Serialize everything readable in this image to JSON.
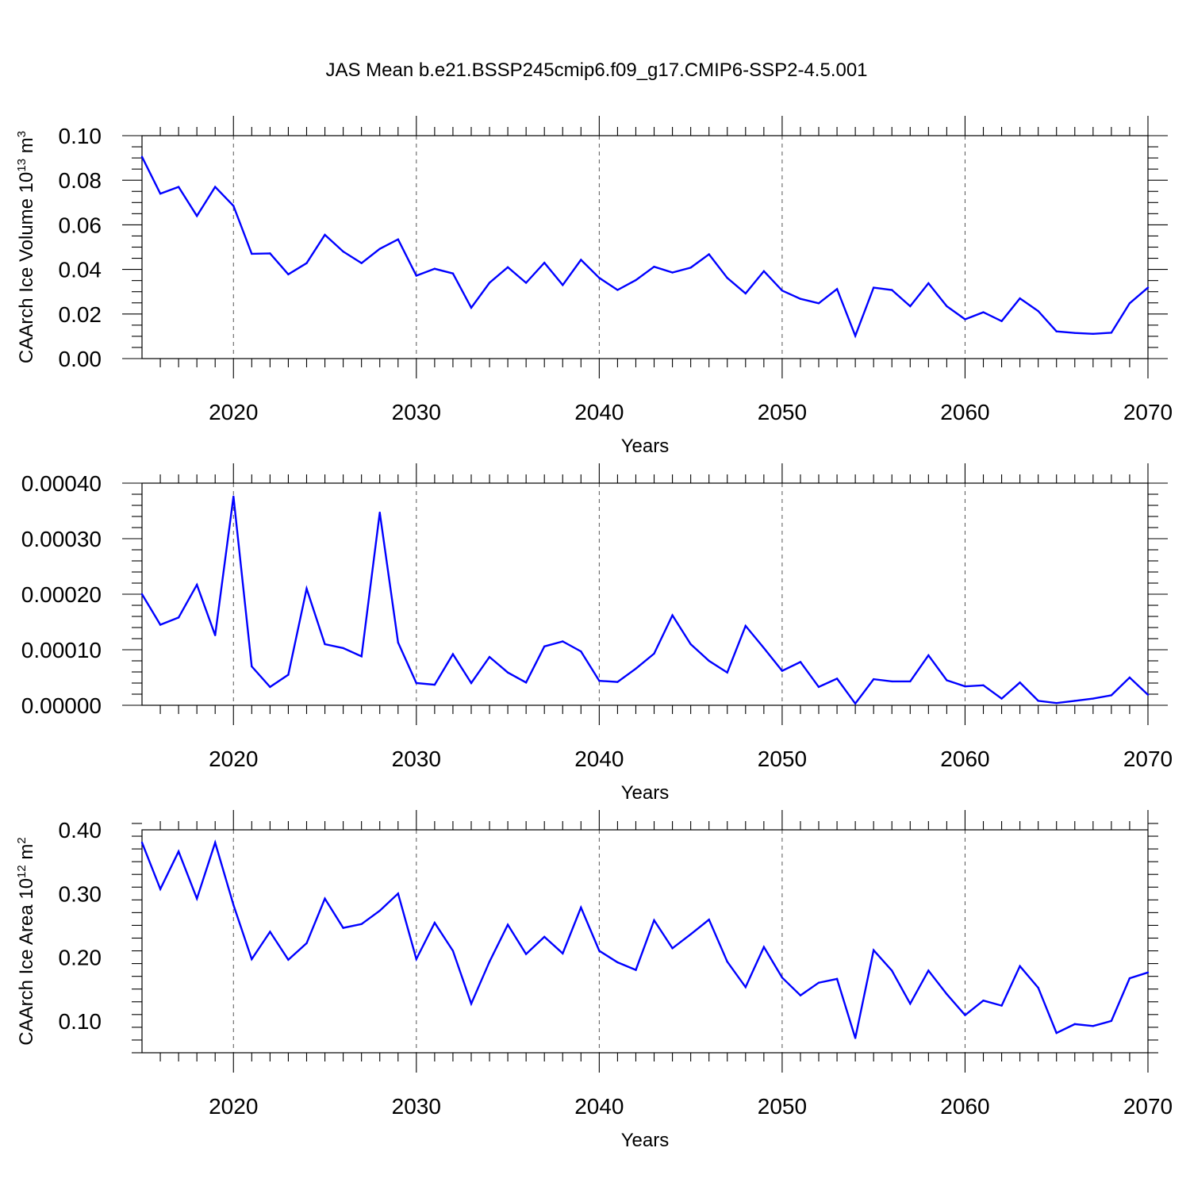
{
  "title": "JAS Mean b.e21.BSSP245cmip6.f09_g17.CMIP6-SSP2-4.5.001",
  "line_color": "#0000ff",
  "chart_data": [
    {
      "type": "line",
      "xlabel": "Years",
      "ylabel": "CAArch Ice Volume 10",
      "ylabel_sup": "13",
      "ylabel_unit": " m",
      "ylabel_unit_sup": "3",
      "xlim": [
        2015,
        2070
      ],
      "ylim": [
        0.0,
        0.1
      ],
      "xticks": [
        2020,
        2030,
        2040,
        2050,
        2060,
        2070
      ],
      "xtick_labels": [
        "2020",
        "2030",
        "2040",
        "2050",
        "2060",
        "2070"
      ],
      "yticks": [
        0.0,
        0.02,
        0.04,
        0.06,
        0.08,
        0.1
      ],
      "ytick_labels": [
        "0.00",
        "0.02",
        "0.04",
        "0.06",
        "0.08",
        "0.10"
      ],
      "y_minor_step": 0.005,
      "grid": "vertical dashed at major x ticks",
      "x": [
        2015,
        2016,
        2017,
        2018,
        2019,
        2020,
        2021,
        2022,
        2023,
        2024,
        2025,
        2026,
        2027,
        2028,
        2029,
        2030,
        2031,
        2032,
        2033,
        2034,
        2035,
        2036,
        2037,
        2038,
        2039,
        2040,
        2041,
        2042,
        2043,
        2044,
        2045,
        2046,
        2047,
        2048,
        2049,
        2050,
        2051,
        2052,
        2053,
        2054,
        2055,
        2056,
        2057,
        2058,
        2059,
        2060,
        2061,
        2062,
        2063,
        2064,
        2065,
        2066,
        2067,
        2068,
        2069,
        2070
      ],
      "values": [
        0.0905,
        0.074,
        0.077,
        0.064,
        0.077,
        0.0685,
        0.047,
        0.0472,
        0.0378,
        0.0428,
        0.0555,
        0.048,
        0.0428,
        0.0492,
        0.0535,
        0.0372,
        0.0403,
        0.0382,
        0.0228,
        0.034,
        0.041,
        0.034,
        0.043,
        0.033,
        0.0443,
        0.0362,
        0.0308,
        0.0352,
        0.0412,
        0.0386,
        0.0408,
        0.0468,
        0.0362,
        0.0292,
        0.0392,
        0.0305,
        0.0268,
        0.0248,
        0.0312,
        0.0102,
        0.0318,
        0.0308,
        0.0235,
        0.0338,
        0.0235,
        0.0176,
        0.0208,
        0.0168,
        0.027,
        0.0213,
        0.0122,
        0.0115,
        0.0111,
        0.0116,
        0.0248,
        0.0318
      ]
    },
    {
      "type": "line",
      "xlabel": "Years",
      "ylabel": "",
      "xlim": [
        2015,
        2070
      ],
      "ylim": [
        0.0,
        0.0004
      ],
      "xticks": [
        2020,
        2030,
        2040,
        2050,
        2060,
        2070
      ],
      "xtick_labels": [
        "2020",
        "2030",
        "2040",
        "2050",
        "2060",
        "2070"
      ],
      "yticks": [
        0.0,
        0.0001,
        0.0002,
        0.0003,
        0.0004
      ],
      "ytick_labels": [
        "0.00000",
        "0.00010",
        "0.00020",
        "0.00030",
        "0.00040"
      ],
      "y_minor_step": 2e-05,
      "grid": "vertical dashed at major x ticks",
      "x": [
        2015,
        2016,
        2017,
        2018,
        2019,
        2020,
        2021,
        2022,
        2023,
        2024,
        2025,
        2026,
        2027,
        2028,
        2029,
        2030,
        2031,
        2032,
        2033,
        2034,
        2035,
        2036,
        2037,
        2038,
        2039,
        2040,
        2041,
        2042,
        2043,
        2044,
        2045,
        2046,
        2047,
        2048,
        2049,
        2050,
        2051,
        2052,
        2053,
        2054,
        2055,
        2056,
        2057,
        2058,
        2059,
        2060,
        2061,
        2062,
        2063,
        2064,
        2065,
        2066,
        2067,
        2068,
        2069,
        2070
      ],
      "values": [
        0.0002,
        0.000145,
        0.000158,
        0.000217,
        0.000126,
        0.000376,
        7e-05,
        3.3e-05,
        5.5e-05,
        0.00021,
        0.00011,
        0.000103,
        8.8e-05,
        0.000347,
        0.000113,
        4e-05,
        3.7e-05,
        9.2e-05,
        4e-05,
        8.7e-05,
        5.9e-05,
        4.1e-05,
        0.000106,
        0.000115,
        9.7e-05,
        4.4e-05,
        4.2e-05,
        6.6e-05,
        9.3e-05,
        0.000162,
        0.00011,
        8e-05,
        5.9e-05,
        0.000143,
        0.000103,
        6.2e-05,
        7.8e-05,
        3.3e-05,
        4.8e-05,
        3e-06,
        4.7e-05,
        4.3e-05,
        4.3e-05,
        9e-05,
        4.5e-05,
        3.4e-05,
        3.6e-05,
        1.2e-05,
        4.1e-05,
        8e-06,
        4e-06,
        8e-06,
        1.2e-05,
        1.8e-05,
        5e-05,
        1.9e-05
      ]
    },
    {
      "type": "line",
      "xlabel": "Years",
      "ylabel": "CAArch Ice Area 10",
      "ylabel_sup": "12",
      "ylabel_unit": " m",
      "ylabel_unit_sup": "2",
      "xlim": [
        2015,
        2070
      ],
      "ylim": [
        0.05,
        0.4
      ],
      "xticks": [
        2020,
        2030,
        2040,
        2050,
        2060,
        2070
      ],
      "xtick_labels": [
        "2020",
        "2030",
        "2040",
        "2050",
        "2060",
        "2070"
      ],
      "yticks": [
        0.1,
        0.2,
        0.3,
        0.4
      ],
      "ytick_labels": [
        "0.10",
        "0.20",
        "0.30",
        "0.40"
      ],
      "y_minor_step": 0.02,
      "grid": "vertical dashed at major x ticks",
      "x": [
        2015,
        2016,
        2017,
        2018,
        2019,
        2020,
        2021,
        2022,
        2023,
        2024,
        2025,
        2026,
        2027,
        2028,
        2029,
        2030,
        2031,
        2032,
        2033,
        2034,
        2035,
        2036,
        2037,
        2038,
        2039,
        2040,
        2041,
        2042,
        2043,
        2044,
        2045,
        2046,
        2047,
        2048,
        2049,
        2050,
        2051,
        2052,
        2053,
        2054,
        2055,
        2056,
        2057,
        2058,
        2059,
        2060,
        2061,
        2062,
        2063,
        2064,
        2065,
        2066,
        2067,
        2068,
        2069,
        2070
      ],
      "values": [
        0.38,
        0.307,
        0.366,
        0.292,
        0.38,
        0.282,
        0.197,
        0.24,
        0.196,
        0.222,
        0.292,
        0.246,
        0.252,
        0.273,
        0.3,
        0.197,
        0.254,
        0.21,
        0.127,
        0.193,
        0.251,
        0.205,
        0.232,
        0.206,
        0.278,
        0.21,
        0.192,
        0.18,
        0.258,
        0.214,
        0.236,
        0.259,
        0.193,
        0.153,
        0.216,
        0.168,
        0.14,
        0.16,
        0.166,
        0.073,
        0.211,
        0.179,
        0.127,
        0.179,
        0.142,
        0.109,
        0.132,
        0.124,
        0.186,
        0.152,
        0.081,
        0.095,
        0.092,
        0.1,
        0.167,
        0.176
      ]
    }
  ]
}
